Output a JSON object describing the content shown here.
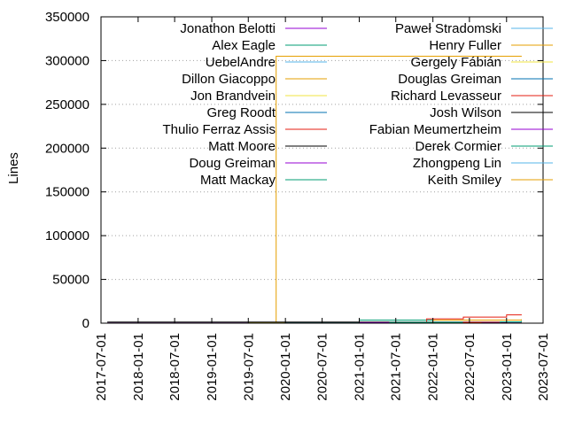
{
  "chart_data": {
    "type": "line",
    "ylabel": "Lines",
    "ylim": [
      0,
      350000
    ],
    "xlim": [
      "2017-07-01",
      "2023-07-01"
    ],
    "grid": "horizontal dotted",
    "legend_placement": "top, two columns",
    "y_ticks": [
      "0",
      "50000",
      "100000",
      "150000",
      "200000",
      "250000",
      "300000",
      "350000"
    ],
    "y_tick_values": [
      0,
      50000,
      100000,
      150000,
      200000,
      250000,
      300000,
      350000
    ],
    "x_ticks": [
      "2017-07-01",
      "2018-01-01",
      "2018-07-01",
      "2019-01-01",
      "2019-07-01",
      "2020-01-01",
      "2020-07-01",
      "2021-01-01",
      "2021-07-01",
      "2022-01-01",
      "2022-07-01",
      "2023-01-01",
      "2023-07-01"
    ],
    "series": [
      {
        "name": "Jonathon Belotti",
        "color": "#9400d3",
        "points": [
          [
            "2017-08-01",
            200
          ],
          [
            "2020-03-01",
            500
          ],
          [
            "2023-03-15",
            1200
          ]
        ]
      },
      {
        "name": "Alex Eagle",
        "color": "#009e73",
        "points": [
          [
            "2019-07-01",
            0
          ],
          [
            "2021-01-01",
            3500
          ],
          [
            "2023-03-15",
            3800
          ]
        ]
      },
      {
        "name": "UebelAndre",
        "color": "#56b4e9",
        "points": [
          [
            "2019-04-01",
            0
          ],
          [
            "2021-06-01",
            800
          ],
          [
            "2023-03-15",
            1500
          ]
        ]
      },
      {
        "name": "Dillon Giacoppo",
        "color": "#e69f00",
        "points": [
          [
            "2019-07-01",
            0
          ],
          [
            "2019-11-15",
            0
          ],
          [
            "2019-11-16",
            305000
          ],
          [
            "2020-03-01",
            305000
          ],
          [
            "2023-03-15",
            305500
          ]
        ]
      },
      {
        "name": "Jon Brandvein",
        "color": "#f0e442",
        "points": [
          [
            "2019-07-01",
            500
          ],
          [
            "2022-01-01",
            900
          ],
          [
            "2023-03-15",
            1200
          ]
        ]
      },
      {
        "name": "Greg Roodt",
        "color": "#0072b2",
        "points": [
          [
            "2018-01-01",
            0
          ],
          [
            "2020-01-01",
            400
          ],
          [
            "2023-03-15",
            700
          ]
        ]
      },
      {
        "name": "Thulio Ferraz Assis",
        "color": "#e51e10",
        "points": [
          [
            "2021-01-01",
            0
          ],
          [
            "2021-12-01",
            5000
          ],
          [
            "2022-06-01",
            7000
          ],
          [
            "2023-01-01",
            9500
          ],
          [
            "2023-03-15",
            10000
          ]
        ]
      },
      {
        "name": "Matt Moore",
        "color": "#000000",
        "points": [
          [
            "2017-08-01",
            1200
          ],
          [
            "2019-07-01",
            1200
          ],
          [
            "2023-03-15",
            1500
          ]
        ]
      },
      {
        "name": "Doug Greiman",
        "color": "#9400d3",
        "points": [
          [
            "2018-01-01",
            0
          ],
          [
            "2021-01-01",
            600
          ],
          [
            "2023-03-15",
            1100
          ]
        ]
      },
      {
        "name": "Matt Mackay",
        "color": "#009e73",
        "points": [
          [
            "2018-01-01",
            0
          ],
          [
            "2021-06-01",
            1000
          ],
          [
            "2023-03-15",
            1800
          ]
        ]
      },
      {
        "name": "Paweł Stradomski",
        "color": "#56b4e9",
        "points": [
          [
            "2020-01-01",
            0
          ],
          [
            "2022-06-01",
            400
          ],
          [
            "2023-03-15",
            700
          ]
        ]
      },
      {
        "name": "Henry Fuller",
        "color": "#e69f00",
        "points": [
          [
            "2021-06-01",
            0
          ],
          [
            "2022-01-01",
            3500
          ],
          [
            "2023-03-15",
            4500
          ]
        ]
      },
      {
        "name": "Gergely Fábián",
        "color": "#f0e442",
        "points": [
          [
            "2021-01-01",
            0
          ],
          [
            "2022-06-01",
            500
          ],
          [
            "2023-03-15",
            900
          ]
        ]
      },
      {
        "name": "Douglas Greiman",
        "color": "#0072b2",
        "points": [
          [
            "2021-06-01",
            0
          ],
          [
            "2022-06-01",
            600
          ],
          [
            "2023-03-15",
            1200
          ]
        ]
      },
      {
        "name": "Richard Levasseur",
        "color": "#e51e10",
        "points": [
          [
            "2021-06-01",
            0
          ],
          [
            "2022-06-01",
            1000
          ],
          [
            "2023-03-15",
            2000
          ]
        ]
      },
      {
        "name": "Josh Wilson",
        "color": "#000000",
        "points": [
          [
            "2022-01-01",
            0
          ],
          [
            "2022-09-01",
            300
          ],
          [
            "2023-03-15",
            500
          ]
        ]
      },
      {
        "name": "Fabian Meumertzheim",
        "color": "#9400d3",
        "points": [
          [
            "2022-01-01",
            0
          ],
          [
            "2022-09-01",
            200
          ],
          [
            "2023-03-15",
            400
          ]
        ]
      },
      {
        "name": "Derek Cormier",
        "color": "#009e73",
        "points": [
          [
            "2022-06-01",
            0
          ],
          [
            "2022-12-01",
            1500
          ],
          [
            "2023-03-15",
            2500
          ]
        ]
      },
      {
        "name": "Zhongpeng Lin",
        "color": "#56b4e9",
        "points": [
          [
            "2022-06-01",
            0
          ],
          [
            "2023-01-01",
            300
          ],
          [
            "2023-03-15",
            600
          ]
        ]
      },
      {
        "name": "Keith Smiley",
        "color": "#e69f00",
        "points": [
          [
            "2022-09-01",
            0
          ],
          [
            "2023-03-15",
            200
          ]
        ]
      }
    ]
  }
}
